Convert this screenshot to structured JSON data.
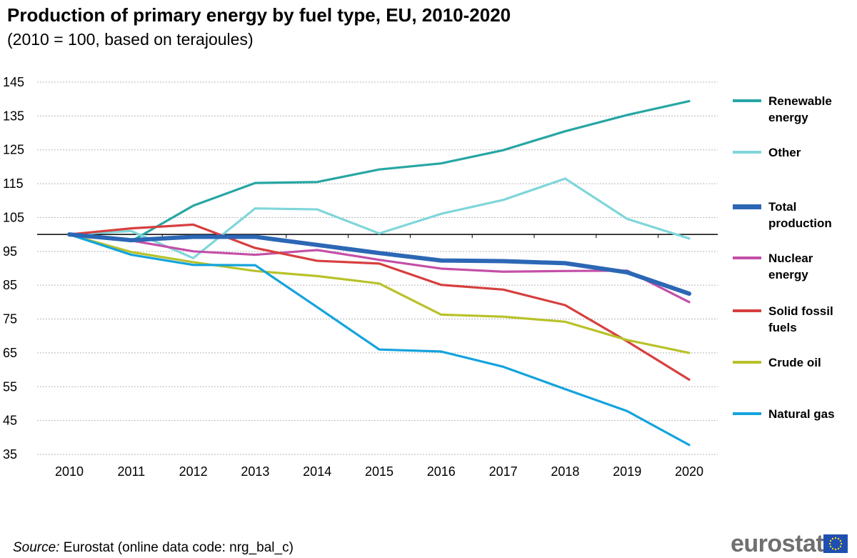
{
  "chart_data": {
    "type": "line",
    "title": "Production of primary energy by fuel type, EU, 2010-2020",
    "subtitle": "(2010 = 100, based on terajoules)",
    "x": [
      "2010",
      "2011",
      "2012",
      "2013",
      "2014",
      "2015",
      "2016",
      "2017",
      "2018",
      "2019",
      "2020"
    ],
    "y_ticks": [
      "145",
      "135",
      "125",
      "115",
      "105",
      "95",
      "85",
      "75",
      "65",
      "55",
      "45",
      "35"
    ],
    "ylim": [
      35,
      145
    ],
    "baseline": 100,
    "series": [
      {
        "name": "Renewable energy",
        "label_lines": [
          "Renewable",
          "energy"
        ],
        "color": "#27a6a3",
        "width": "normal",
        "values": [
          100,
          98,
          108.5,
          115.2,
          115.5,
          119.2,
          121,
          124.9,
          130.5,
          135.3,
          139.4
        ]
      },
      {
        "name": "Other",
        "label_lines": [
          "Other"
        ],
        "color": "#7fd6da",
        "width": "normal",
        "values": [
          100,
          101,
          93,
          107.7,
          107.4,
          100.3,
          106.1,
          110.2,
          116.5,
          104.6,
          98.8
        ]
      },
      {
        "name": "Total production",
        "label_lines": [
          "Total",
          "production"
        ],
        "color": "#2c67b5",
        "width": "thick",
        "values": [
          100,
          98.3,
          99.3,
          99.3,
          96.9,
          94.5,
          92.3,
          92.1,
          91.5,
          88.8,
          82.5
        ]
      },
      {
        "name": "Nuclear energy",
        "label_lines": [
          "Nuclear",
          "energy"
        ],
        "color": "#c44fa8",
        "width": "normal",
        "values": [
          100,
          98.2,
          95,
          94,
          95.4,
          92.5,
          89.9,
          89,
          89.2,
          89.3,
          80
        ]
      },
      {
        "name": "Solid fossil fuels",
        "label_lines": [
          "Solid fossil",
          "fuels"
        ],
        "color": "#d73f3f",
        "width": "normal",
        "values": [
          100,
          101.8,
          102.9,
          96,
          92.2,
          91.4,
          85.1,
          83.7,
          79.1,
          68.4,
          57.1
        ]
      },
      {
        "name": "Crude oil",
        "label_lines": [
          "Crude oil"
        ],
        "color": "#b8c22a",
        "width": "normal",
        "values": [
          100,
          94.8,
          91.8,
          89.2,
          87.7,
          85.5,
          76.3,
          75.7,
          74.2,
          68.8,
          65
        ]
      },
      {
        "name": "Natural gas",
        "label_lines": [
          "Natural gas"
        ],
        "color": "#14a3dd",
        "width": "normal",
        "values": [
          100,
          94,
          91,
          90.9,
          78.5,
          66,
          65.4,
          60.9,
          54.3,
          47.8,
          37.8
        ]
      }
    ]
  },
  "source": {
    "label": "Source:",
    "text": "Eurostat (online data code: nrg_bal_c)"
  },
  "logo": {
    "text": "eurostat"
  }
}
